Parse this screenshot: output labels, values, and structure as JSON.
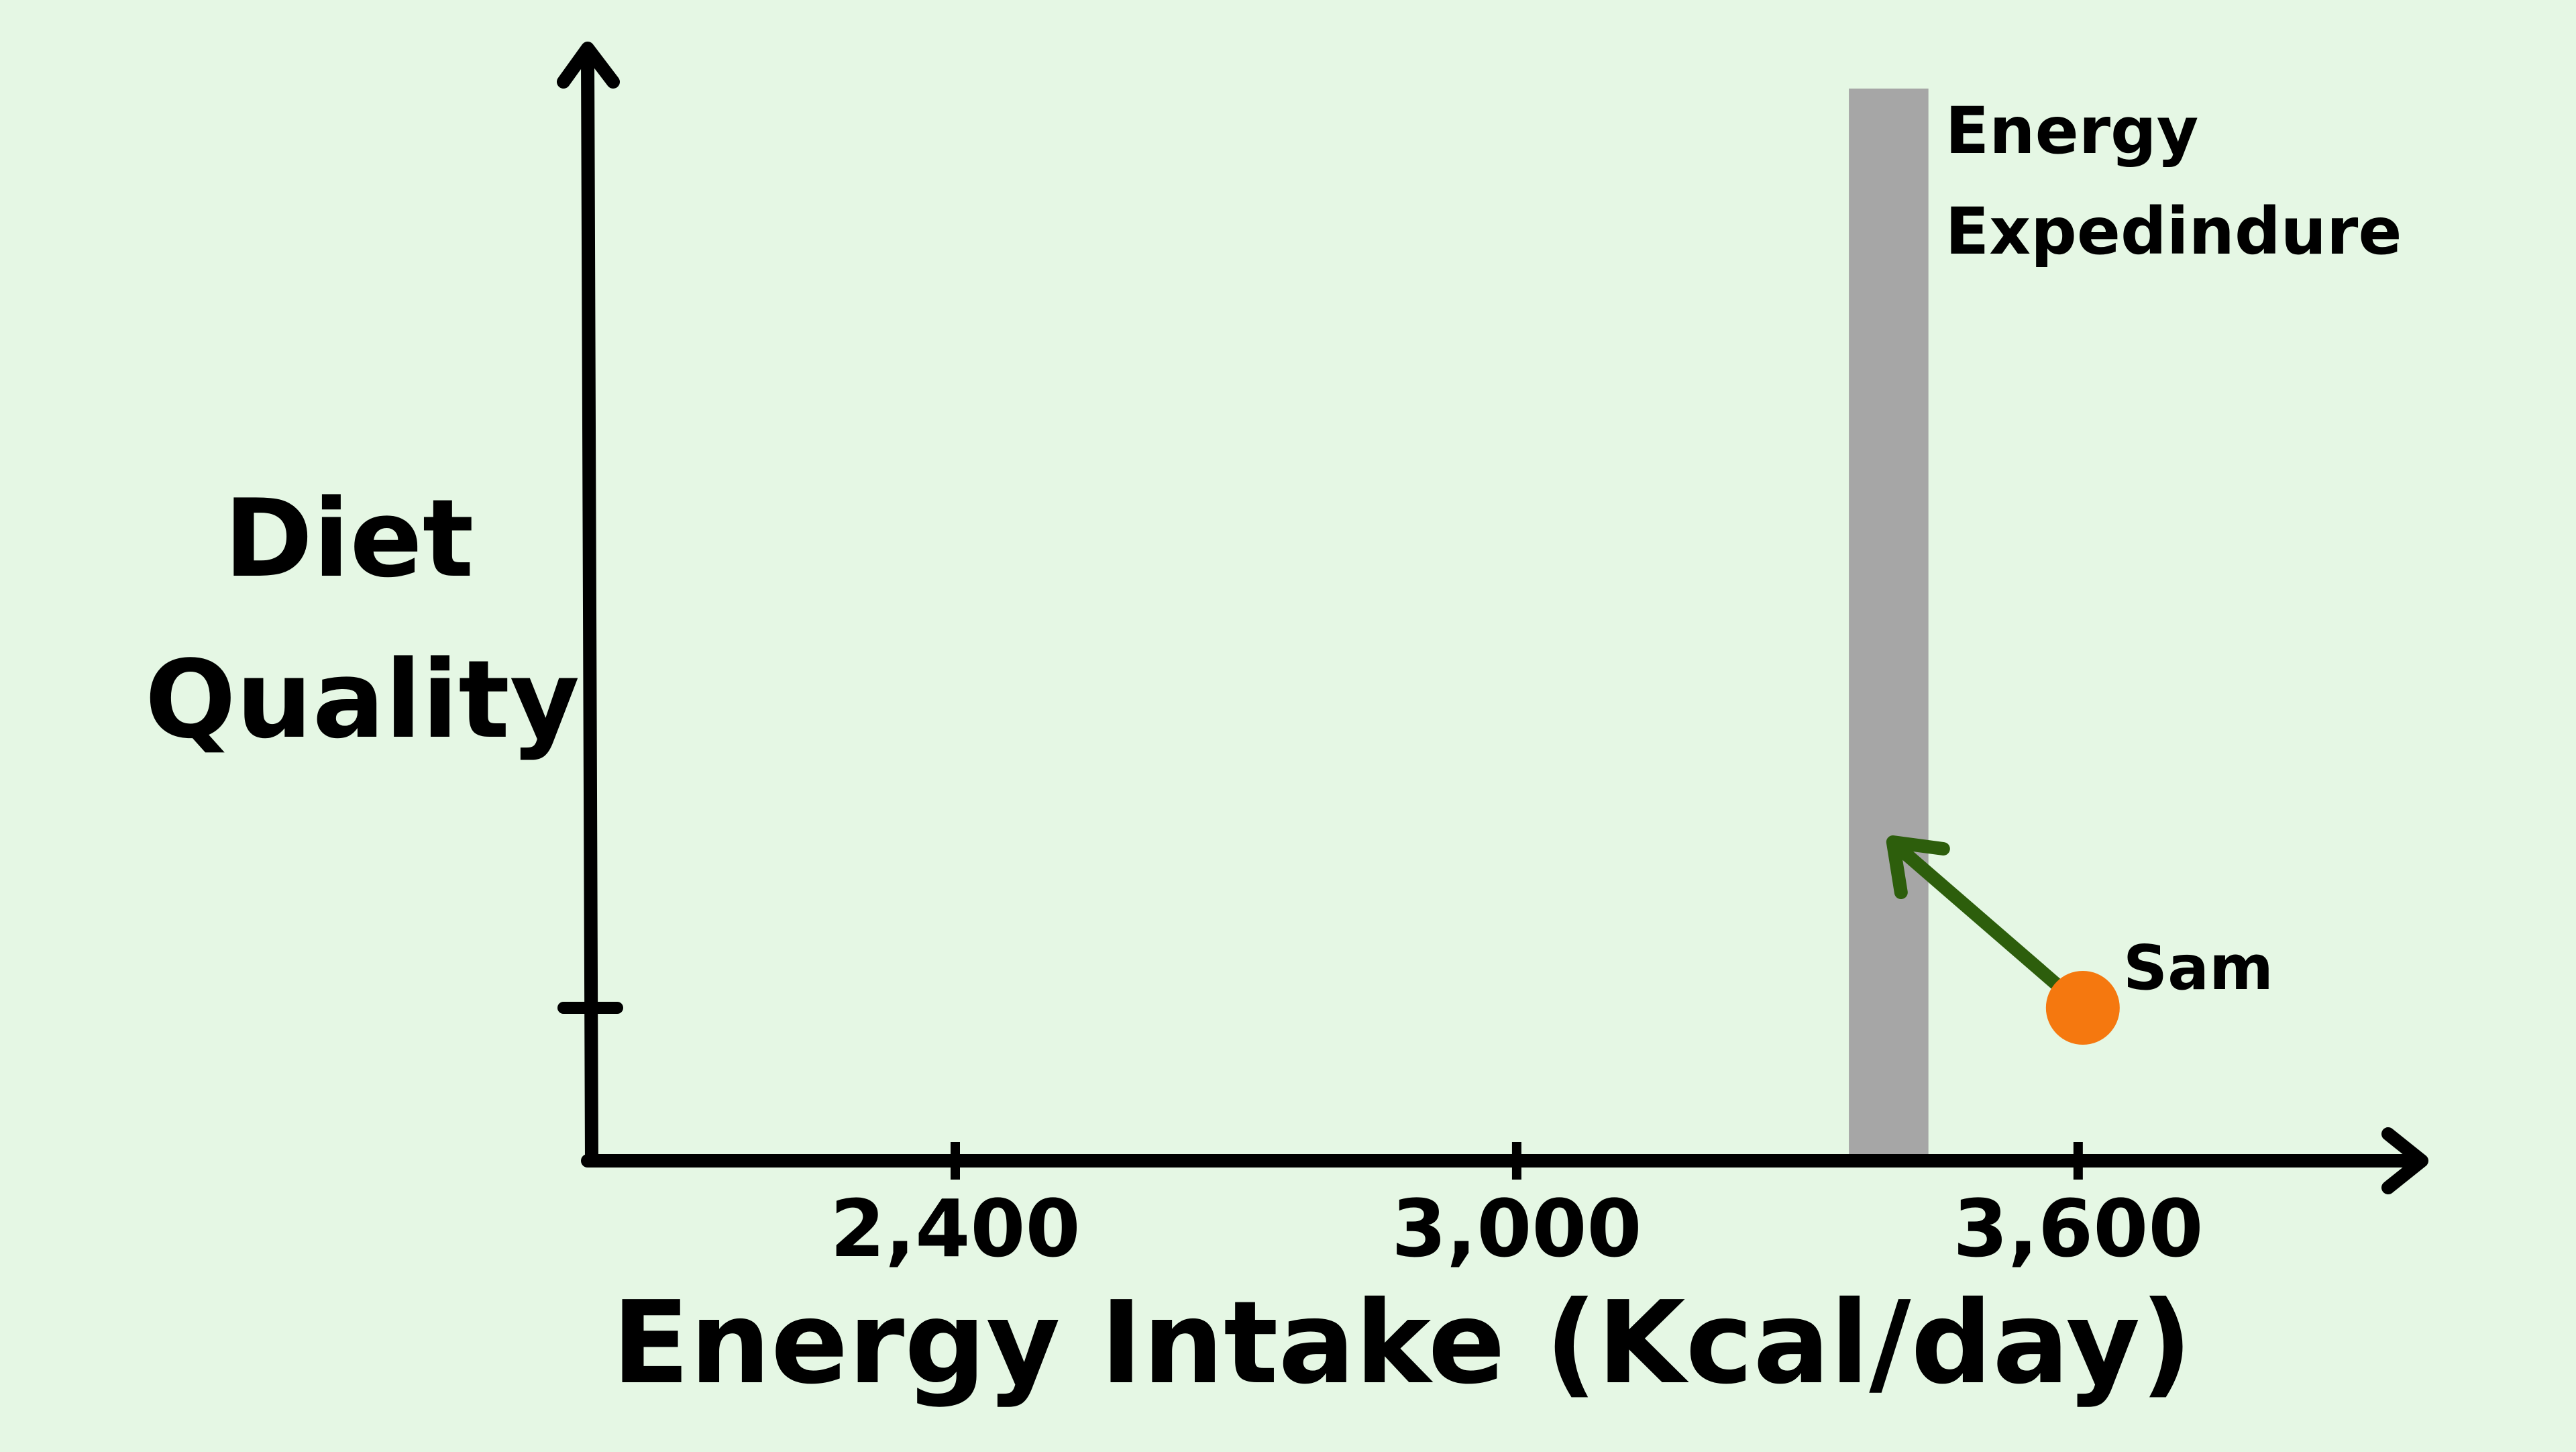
{
  "chart_data": {
    "type": "scatter",
    "title": "",
    "xlabel": "Energy Intake (Kcal/day)",
    "ylabel": [
      "Diet",
      "Quality"
    ],
    "x_ticks": [
      {
        "value": 2400,
        "label": "2,400"
      },
      {
        "value": 3000,
        "label": "3,000"
      },
      {
        "value": 3600,
        "label": "3,600"
      }
    ],
    "xlim": [
      2010,
      3960
    ],
    "grid": false,
    "band": {
      "label": [
        "Energy",
        "Expedindure"
      ],
      "x_start": 3355,
      "x_end": 3440,
      "color": "#a6a6a6"
    },
    "points": [
      {
        "name": "Sam",
        "x": 3605,
        "color": "#f5780f"
      }
    ],
    "arrow": {
      "color": "#2d5e0c"
    },
    "axis_color": "#000000",
    "background": "#e5f7e4"
  }
}
